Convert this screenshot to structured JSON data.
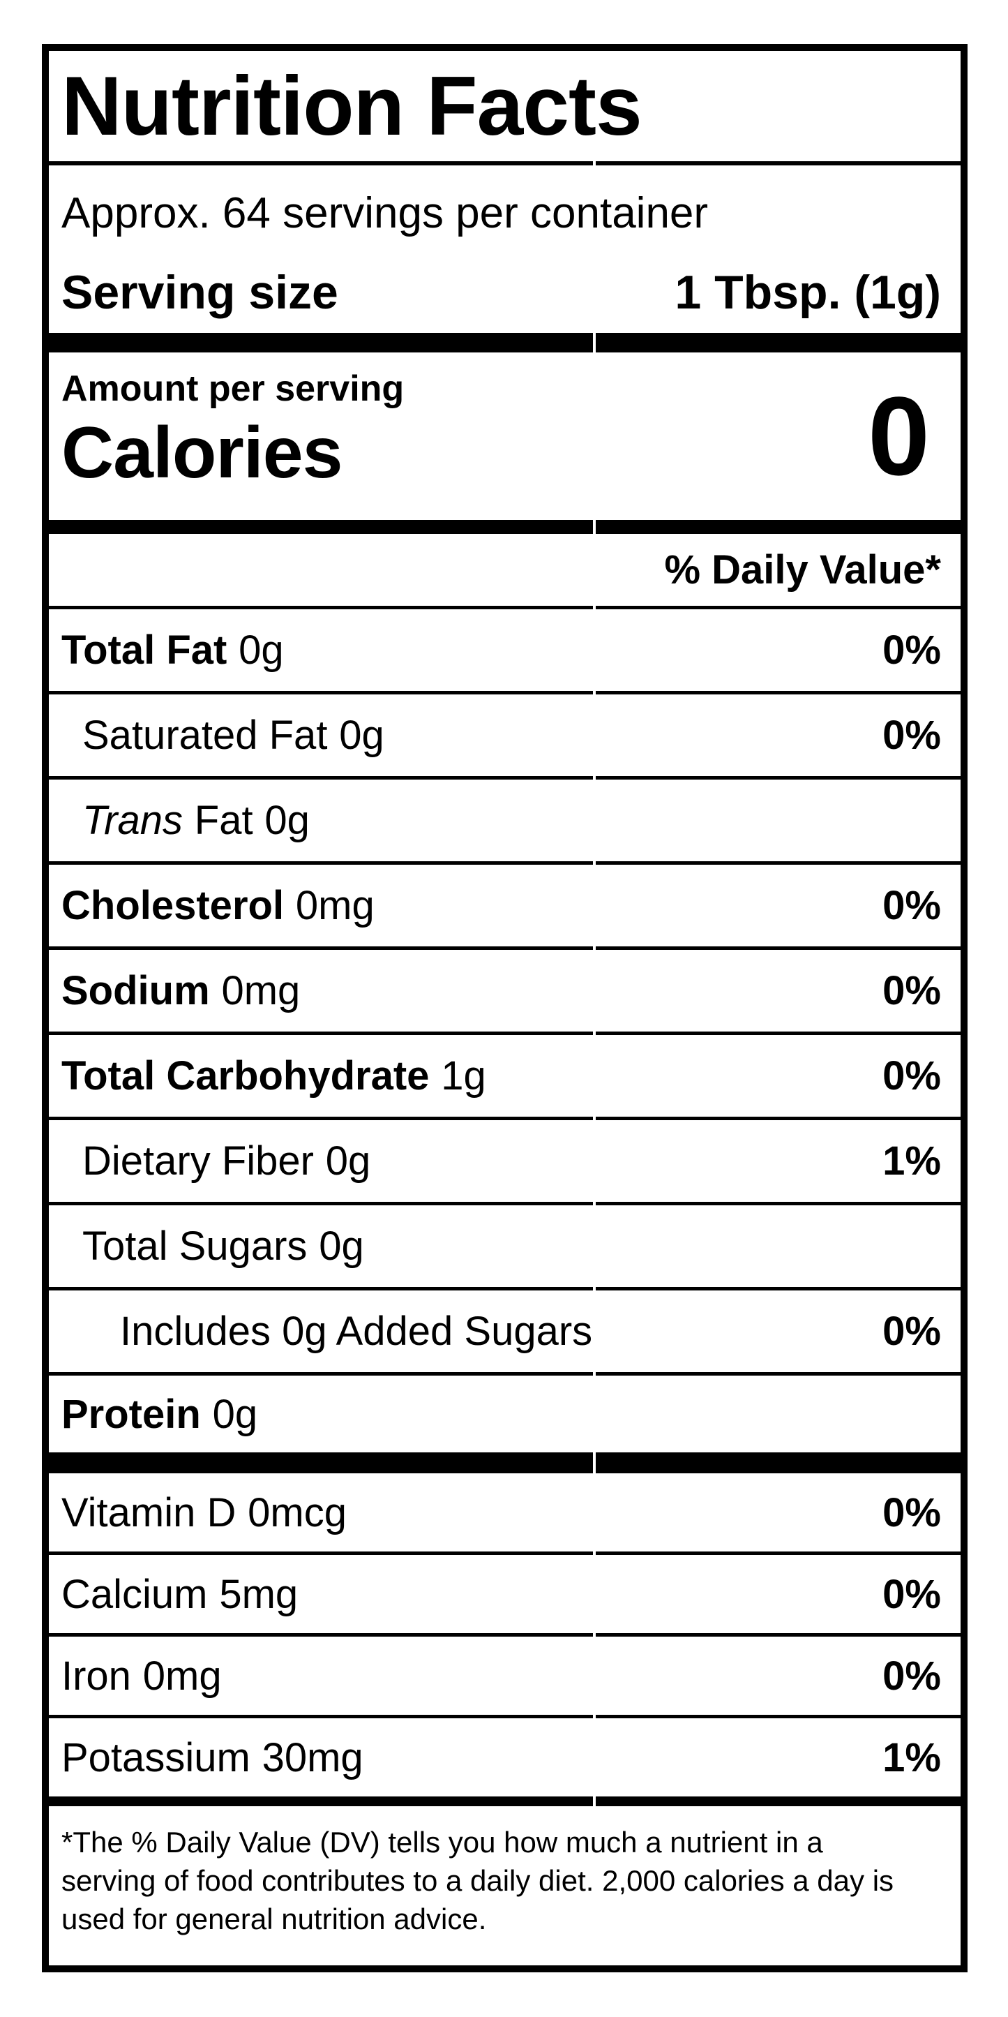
{
  "label": {
    "title": "Nutrition Facts",
    "servings_per_container": "Approx. 64 servings per container",
    "serving_size": {
      "label": "Serving size",
      "value": "1 Tbsp. (1g)"
    },
    "calories": {
      "heading": "Amount per serving",
      "label": "Calories",
      "value": "0"
    },
    "daily_value_header": "% Daily Value*",
    "nutrients": [
      {
        "name": "Total Fat",
        "amount": "0g",
        "dv": "0%"
      },
      {
        "name": "Saturated Fat",
        "amount": "0g",
        "dv": "0%"
      },
      {
        "name_italic": "Trans",
        "name": "Fat",
        "amount": "0g",
        "dv": ""
      },
      {
        "name": "Cholesterol",
        "amount": "0mg",
        "dv": "0%"
      },
      {
        "name": "Sodium",
        "amount": "0mg",
        "dv": "0%"
      },
      {
        "name": "Total Carbohydrate",
        "amount": "1g",
        "dv": "0%"
      },
      {
        "name": "Dietary Fiber",
        "amount": "0g",
        "dv": "1%"
      },
      {
        "name": "Total Sugars",
        "amount": "0g",
        "dv": ""
      },
      {
        "name": "Includes 0g Added Sugars",
        "amount": "",
        "dv": "0%"
      },
      {
        "name": "Protein",
        "amount": "0g",
        "dv": ""
      },
      {
        "name": "Vitamin D",
        "amount": "0mcg",
        "dv": "0%"
      },
      {
        "name": "Calcium",
        "amount": "5mg",
        "dv": "0%"
      },
      {
        "name": "Iron",
        "amount": "0mg",
        "dv": "0%"
      },
      {
        "name": "Potassium",
        "amount": "30mg",
        "dv": "1%"
      }
    ],
    "footnote": "*The % Daily Value (DV) tells you how much a nutrient in a serving of food contributes to a daily diet. 2,000 calories a day is used for general nutrition advice.",
    "colors": {
      "ink": "#000000",
      "background": "#ffffff"
    }
  }
}
